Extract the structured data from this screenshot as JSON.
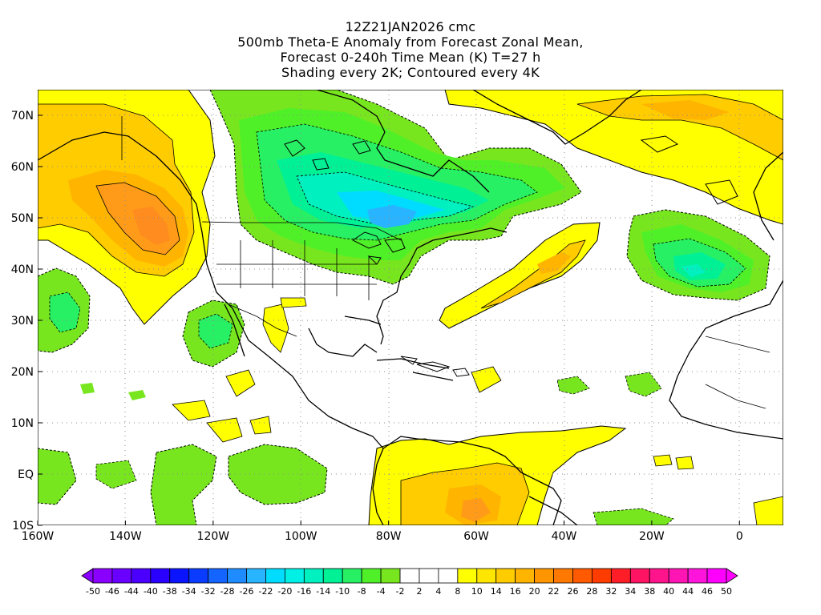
{
  "title": {
    "lines": [
      "12Z21JAN2026 cmc",
      "500mb Theta-E Anomaly from Forecast Zonal Mean,",
      "Forecast 0-240h Time Mean (K) T=27 h",
      "Shading every 2K; Contoured every 4K"
    ]
  },
  "axes": {
    "lat_labels": [
      "70N",
      "60N",
      "50N",
      "40N",
      "30N",
      "20N",
      "10N",
      "EQ",
      "10S"
    ],
    "lat_values": [
      70,
      60,
      50,
      40,
      30,
      20,
      10,
      0,
      -10
    ],
    "lon_labels": [
      "160W",
      "140W",
      "120W",
      "100W",
      "80W",
      "60W",
      "40W",
      "20W",
      "0"
    ],
    "lon_values": [
      -160,
      -140,
      -120,
      -100,
      -80,
      -60,
      -40,
      -20,
      0
    ],
    "lon_range": [
      -160,
      10
    ],
    "lat_range": [
      -10,
      75
    ],
    "grid": true
  },
  "colorbar": {
    "labels": [
      "-50",
      "-46",
      "-44",
      "-40",
      "-38",
      "-34",
      "-32",
      "-28",
      "-26",
      "-22",
      "-20",
      "-16",
      "-14",
      "-10",
      "-8",
      "-4",
      "-2",
      "2",
      "4",
      "8",
      "10",
      "14",
      "16",
      "20",
      "22",
      "26",
      "28",
      "32",
      "34",
      "38",
      "40",
      "44",
      "46",
      "50"
    ],
    "colors": [
      "#8a00ff",
      "#6a00ff",
      "#4b00ff",
      "#2a00ff",
      "#0a14ff",
      "#0a3cff",
      "#1464ff",
      "#1e8cff",
      "#28b4ff",
      "#00dcff",
      "#00f0e6",
      "#00f0c0",
      "#00f096",
      "#28f064",
      "#50f028",
      "#78e61e",
      "#ffffff",
      "#ffffff",
      "#ffffff",
      "#ffff00",
      "#ffe600",
      "#ffcc00",
      "#ffb400",
      "#ff9600",
      "#ff7800",
      "#ff5a00",
      "#ff3c00",
      "#ff1e28",
      "#ff1464",
      "#ff148c",
      "#ff14b4",
      "#ff14dc",
      "#ff00ff"
    ]
  },
  "colors": {
    "positive_light": "#ffff00",
    "positive_mid": "#ffcc00",
    "positive_strong": "#ff9b19",
    "negative_light": "#78e61e",
    "negative_mid": "#28f064",
    "negative_strong": "#00dcc8",
    "negative_core": "#28b4ff"
  },
  "regions": [
    {
      "name": "NE Pacific / Gulf of Alaska warm anomaly",
      "sign": "positive",
      "peak": "~22 K"
    },
    {
      "name": "Canada / Great Lakes cold anomaly",
      "sign": "negative",
      "peak": "~-26 K"
    },
    {
      "name": "Western Atlantic warm band",
      "sign": "positive",
      "peak": "~16 K"
    },
    {
      "name": "Iberia / NW Africa cold anomaly",
      "sign": "negative",
      "peak": "~-16 K"
    },
    {
      "name": "Greenland / N Atlantic warm anomaly",
      "sign": "positive",
      "peak": "~12 K"
    },
    {
      "name": "South America warm anomaly",
      "sign": "positive",
      "peak": "~16 K"
    }
  ]
}
